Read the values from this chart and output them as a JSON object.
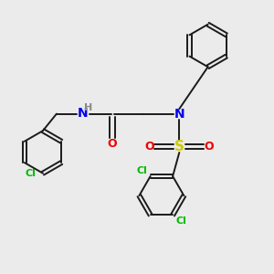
{
  "bg_color": "#ebebeb",
  "bond_color": "#1a1a1a",
  "bond_width": 1.4,
  "cl_color": "#00bb00",
  "n_color": "#0000ee",
  "o_color": "#ee0000",
  "s_color": "#cccc00",
  "h_color": "#888888",
  "font_size": 8,
  "figsize": [
    3.0,
    3.0
  ],
  "dpi": 100,
  "xlim": [
    0,
    10
  ],
  "ylim": [
    0,
    10
  ]
}
